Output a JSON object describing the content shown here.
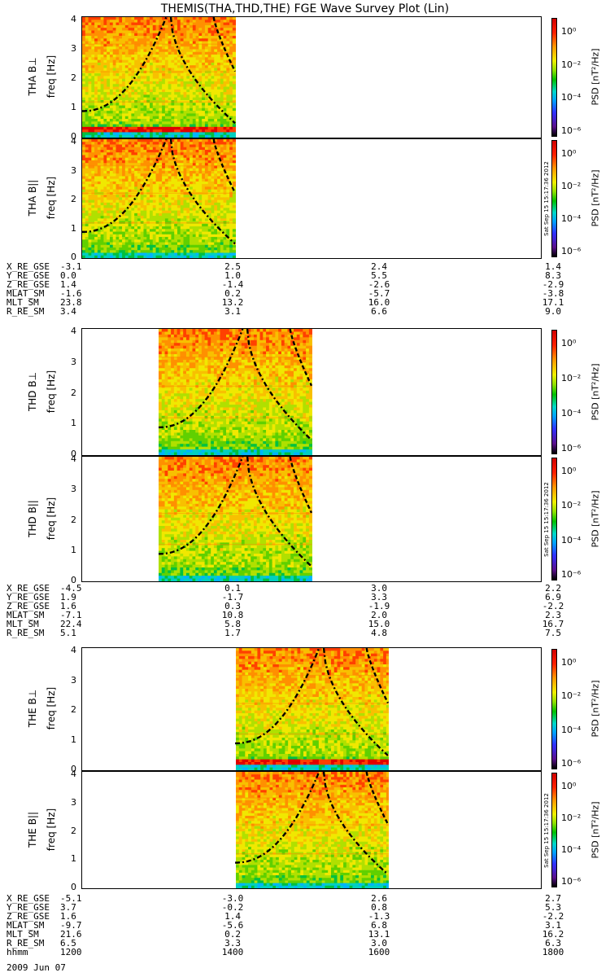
{
  "title": "THEMIS(THA,THD,THE) FGE Wave Survey Plot (Lin)",
  "date_label": "2009 Jun 07",
  "colorbar": {
    "label": "PSD [nT²/Hz]",
    "ticks": [
      "10⁰",
      "10⁻²",
      "10⁻⁴",
      "10⁻⁶"
    ],
    "stamp": "Sat Sep 15 15:17:36 2012"
  },
  "freq_axis_label": "freq [Hz]",
  "freq_ticks": [
    "0",
    "1",
    "2",
    "3",
    "4"
  ],
  "ephemeris_names": [
    "X_RE_GSE",
    "Y_RE_GSE",
    "Z_RE_GSE",
    "MLAT_SM",
    "MLT_SM",
    "R_RE_SM"
  ],
  "time_row_name": "hhmm",
  "time_ticks": [
    "1200",
    "1400",
    "1600",
    "1800"
  ],
  "probes": [
    {
      "id": "tha",
      "panels": [
        {
          "name": "THA B⊥"
        },
        {
          "name": "THA B||"
        }
      ],
      "data_x_range": [
        1200,
        1400
      ],
      "ephemeris": [
        [
          "-3.1",
          "2.5",
          "2.4",
          "1.4"
        ],
        [
          "0.0",
          "1.0",
          "5.5",
          "8.3"
        ],
        [
          "1.4",
          "-1.4",
          "-2.6",
          "-2.9"
        ],
        [
          "-1.6",
          "0.2",
          "-5.7",
          "-3.8"
        ],
        [
          "23.8",
          "13.2",
          "16.0",
          "17.1"
        ],
        [
          "3.4",
          "3.1",
          "6.6",
          "9.0"
        ]
      ]
    },
    {
      "id": "thd",
      "panels": [
        {
          "name": "THD B⊥"
        },
        {
          "name": "THD B||"
        }
      ],
      "data_x_range": [
        1300,
        1500
      ],
      "ephemeris": [
        [
          "-4.5",
          "0.1",
          "3.0",
          "2.2"
        ],
        [
          "1.9",
          "-1.7",
          "3.3",
          "6.9"
        ],
        [
          "1.6",
          "0.3",
          "-1.9",
          "-2.2"
        ],
        [
          "-7.1",
          "10.8",
          "2.0",
          "2.3"
        ],
        [
          "22.4",
          "5.8",
          "15.0",
          "16.7"
        ],
        [
          "5.1",
          "1.7",
          "4.8",
          "7.5"
        ]
      ]
    },
    {
      "id": "the",
      "panels": [
        {
          "name": "THE B⊥"
        },
        {
          "name": "THE B||"
        }
      ],
      "data_x_range": [
        1400,
        1600
      ],
      "ephemeris": [
        [
          "-5.1",
          "-3.0",
          "2.6",
          "2.7"
        ],
        [
          "3.7",
          "-0.2",
          "0.8",
          "5.3"
        ],
        [
          "1.6",
          "1.4",
          "-1.3",
          "-2.2"
        ],
        [
          "-9.7",
          "-5.6",
          "6.8",
          "3.1"
        ],
        [
          "21.6",
          "0.2",
          "13.1",
          "16.2"
        ],
        [
          "6.5",
          "3.3",
          "3.0",
          "6.3"
        ]
      ]
    }
  ],
  "chart_data": {
    "type": "heatmap",
    "title": "THEMIS(THA,THD,THE) FGE Wave Survey Plot (Lin)",
    "xlabel": "hhmm",
    "x_ticks": [
      "1200",
      "1400",
      "1600",
      "1800"
    ],
    "ylabel": "freq [Hz]",
    "ylim": [
      0,
      4
    ],
    "colorbar": {
      "label": "PSD [nT²/Hz]",
      "scale": "log",
      "range": [
        "1e-6",
        "1e1"
      ]
    },
    "panels": [
      {
        "name": "THA B⊥",
        "x_range": [
          1200,
          1400
        ],
        "strong_band_hz": 0.25
      },
      {
        "name": "THA B||",
        "x_range": [
          1200,
          1400
        ]
      },
      {
        "name": "THD B⊥",
        "x_range": [
          1300,
          1500
        ]
      },
      {
        "name": "THD B||",
        "x_range": [
          1300,
          1500
        ]
      },
      {
        "name": "THE B⊥",
        "x_range": [
          1400,
          1600
        ],
        "strong_band_hz": 0.25
      },
      {
        "name": "THE B||",
        "x_range": [
          1400,
          1600
        ]
      }
    ]
  }
}
